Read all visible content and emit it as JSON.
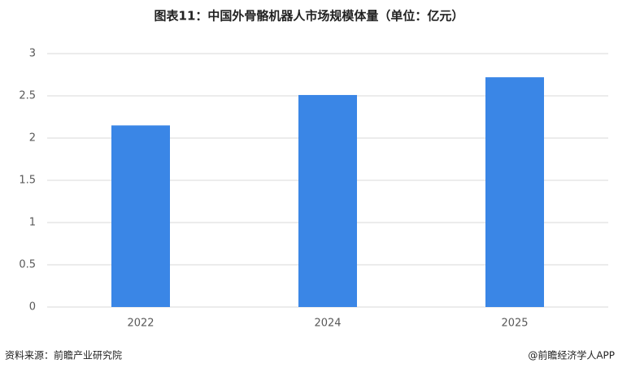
{
  "chart_data": {
    "type": "bar",
    "title": "图表11：中国外骨骼机器人市场规模体量（单位：亿元）",
    "categories": [
      "2022",
      "2024",
      "2025"
    ],
    "values": [
      2.15,
      2.51,
      2.72
    ],
    "color": "#3a86e6",
    "ylim": [
      0,
      3
    ],
    "yticks": [
      0,
      0.5,
      1,
      1.5,
      2,
      2.5,
      3
    ],
    "grid": true,
    "source": "资料来源：前瞻产业研究院",
    "credit": "@前瞻经济学人APP"
  }
}
